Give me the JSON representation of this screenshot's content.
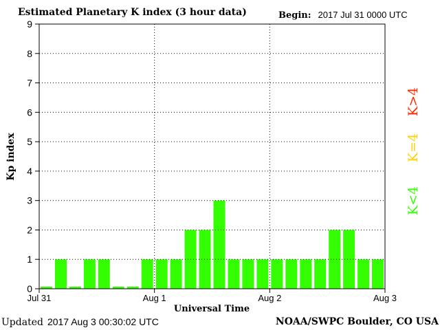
{
  "header": {
    "title": "Estimated Planetary K index (3 hour data)",
    "begin_label": "Begin:",
    "begin_value": "2017 Jul 31 0000 UTC"
  },
  "footer": {
    "updated_label": "Updated",
    "updated_value": "2017 Aug  3 00:30:02 UTC",
    "credit": "NOAA/SWPC Boulder, CO USA"
  },
  "legend": {
    "items": [
      {
        "label": "K>4",
        "color": "#ff2a00"
      },
      {
        "label": "K=4",
        "color": "#ffd200"
      },
      {
        "label": "K<4",
        "color": "#33ff00"
      }
    ]
  },
  "chart_data": {
    "type": "bar",
    "title": "Estimated Planetary K index (3 hour data)",
    "xlabel": "Universal Time",
    "ylabel": "Kp index",
    "ylim": [
      0,
      9
    ],
    "yticks": [
      0,
      1,
      2,
      3,
      4,
      5,
      6,
      7,
      8,
      9
    ],
    "xticks": [
      "Jul 31",
      "Aug 1",
      "Aug 2",
      "Aug 3"
    ],
    "bar_color": "#33ff00",
    "grid": true,
    "values": [
      0,
      1,
      0,
      1,
      1,
      0,
      0,
      1,
      1,
      1,
      2,
      2,
      3,
      1,
      1,
      1,
      1,
      1,
      1,
      1,
      2,
      2,
      1,
      1
    ]
  }
}
